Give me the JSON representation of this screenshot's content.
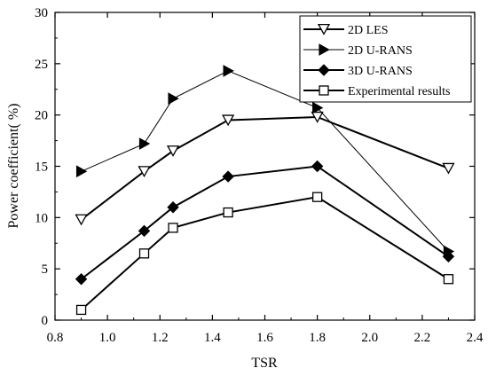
{
  "chart_data": {
    "type": "line",
    "title": "",
    "xlabel": "TSR",
    "ylabel": "Power coefficient(  %)",
    "xlim": [
      0.8,
      2.4
    ],
    "ylim": [
      0,
      30
    ],
    "xticks": [
      "0.8",
      "1.0",
      "1.2",
      "1.4",
      "1.6",
      "1.8",
      "2.0",
      "2.2",
      "2.4"
    ],
    "yticks": [
      "0",
      "5",
      "10",
      "15",
      "20",
      "25",
      "30"
    ],
    "grid": false,
    "legend_position": "top-right",
    "series": [
      {
        "name": "2D LES",
        "marker": "triangle-down-open",
        "stroke_width": 2,
        "x": [
          0.9,
          1.14,
          1.25,
          1.46,
          1.8,
          2.3
        ],
        "y": [
          9.8,
          14.5,
          16.5,
          19.5,
          19.8,
          14.8
        ]
      },
      {
        "name": "2D U-RANS",
        "marker": "triangle-right-filled",
        "stroke_width": 1,
        "x": [
          0.9,
          1.14,
          1.25,
          1.46,
          1.8,
          2.3
        ],
        "y": [
          14.5,
          17.2,
          21.6,
          24.3,
          20.7,
          6.7
        ]
      },
      {
        "name": "3D U-RANS",
        "marker": "diamond-filled",
        "stroke_width": 2,
        "x": [
          0.9,
          1.14,
          1.25,
          1.46,
          1.8,
          2.3
        ],
        "y": [
          4.0,
          8.7,
          11.0,
          14.0,
          15.0,
          6.2
        ]
      },
      {
        "name": "Experimental results",
        "marker": "square-open",
        "stroke_width": 2,
        "x": [
          0.9,
          1.14,
          1.25,
          1.46,
          1.8,
          2.3
        ],
        "y": [
          1.0,
          6.5,
          9.0,
          10.5,
          12.0,
          4.0
        ]
      }
    ]
  }
}
